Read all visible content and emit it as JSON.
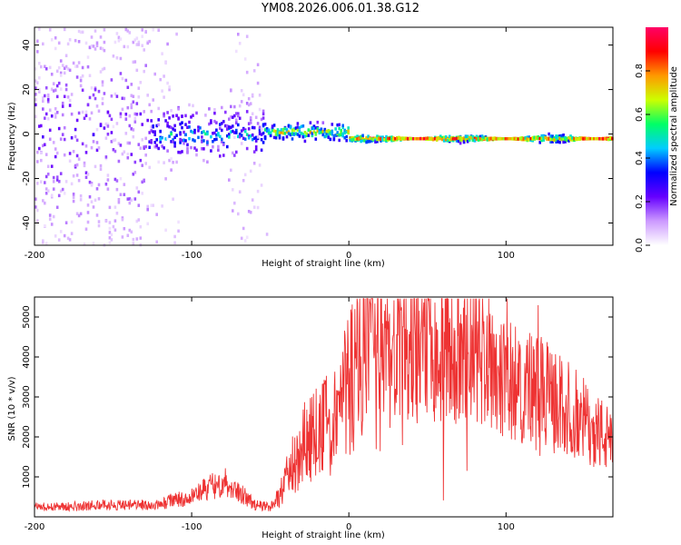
{
  "figure_title": "YM08.2026.006.01.38.G12",
  "chart_data": [
    {
      "type": "heatmap",
      "name": "spectrogram",
      "xlabel": "Height of straight line (km)",
      "ylabel": "Frequency (Hz)",
      "xlim": [
        -200,
        168
      ],
      "ylim": [
        -50,
        48
      ],
      "x_ticks": [
        -200,
        -100,
        0,
        100
      ],
      "x_tick_labels": [
        "-200",
        "-100",
        "0",
        "100"
      ],
      "y_ticks": [
        -40,
        -20,
        0,
        20,
        40
      ],
      "y_tick_labels": [
        "-40",
        "-20",
        "0",
        "20",
        "40"
      ],
      "colorbar": {
        "label": "Normalized spectral amplitude",
        "range": [
          0,
          1
        ],
        "ticks": [
          0,
          0.2,
          0.4,
          0.6,
          0.8
        ],
        "tick_labels": [
          "0.0",
          "0.2",
          "0.4",
          "0.6",
          "0.8"
        ],
        "colors": [
          "#ffffff",
          "#cc99ff",
          "#6600ff",
          "#0000ff",
          "#00ccff",
          "#00ff66",
          "#ccff00",
          "#ff9900",
          "#ff0000",
          "#ff0066"
        ]
      },
      "regions": [
        {
          "x": [
            -200,
            -128
          ],
          "freq_center": 0,
          "freq_spread": 48,
          "amplitude": 0.12,
          "description": "broadband noise"
        },
        {
          "x": [
            -128,
            -55
          ],
          "freq_center": 0,
          "freq_spread": 10,
          "amplitude": 0.4,
          "description": "emerging signal"
        },
        {
          "x": [
            -55,
            0
          ],
          "freq_center": 1,
          "freq_spread": 3,
          "amplitude": 0.7,
          "description": "signal band"
        },
        {
          "x": [
            0,
            168
          ],
          "freq_center": -2,
          "freq_spread": 1.5,
          "amplitude": 0.9,
          "description": "strong narrow band"
        }
      ]
    },
    {
      "type": "line",
      "name": "snr",
      "xlabel": "Height of straight line (km)",
      "ylabel": "SNR (10 * v/v)",
      "xlim": [
        -200,
        168
      ],
      "ylim": [
        0,
        5500
      ],
      "x_ticks": [
        -200,
        -100,
        0,
        100
      ],
      "x_tick_labels": [
        "-200",
        "-100",
        "0",
        "100"
      ],
      "y_ticks": [
        1000,
        2000,
        3000,
        4000,
        5000
      ],
      "y_tick_labels": [
        "1000",
        "2000",
        "3000",
        "4000",
        "5000"
      ],
      "color": "#ee3333",
      "series": [
        {
          "name": "SNR envelope",
          "x": [
            -200,
            -180,
            -160,
            -140,
            -120,
            -110,
            -100,
            -90,
            -80,
            -70,
            -60,
            -50,
            -45,
            -40,
            -35,
            -30,
            -25,
            -20,
            -15,
            -10,
            -5,
            0,
            5,
            10,
            20,
            30,
            40,
            50,
            60,
            70,
            80,
            90,
            95,
            100,
            110,
            120,
            130,
            140,
            150,
            160,
            168
          ],
          "values": [
            250,
            250,
            300,
            300,
            300,
            450,
            500,
            700,
            900,
            650,
            300,
            250,
            500,
            900,
            1400,
            1700,
            1900,
            2100,
            2200,
            2300,
            2800,
            3400,
            3700,
            3900,
            4000,
            4000,
            4100,
            4200,
            4100,
            4050,
            4000,
            4000,
            3700,
            3400,
            3300,
            3200,
            2900,
            2700,
            2400,
            2100,
            1800
          ]
        }
      ]
    }
  ]
}
